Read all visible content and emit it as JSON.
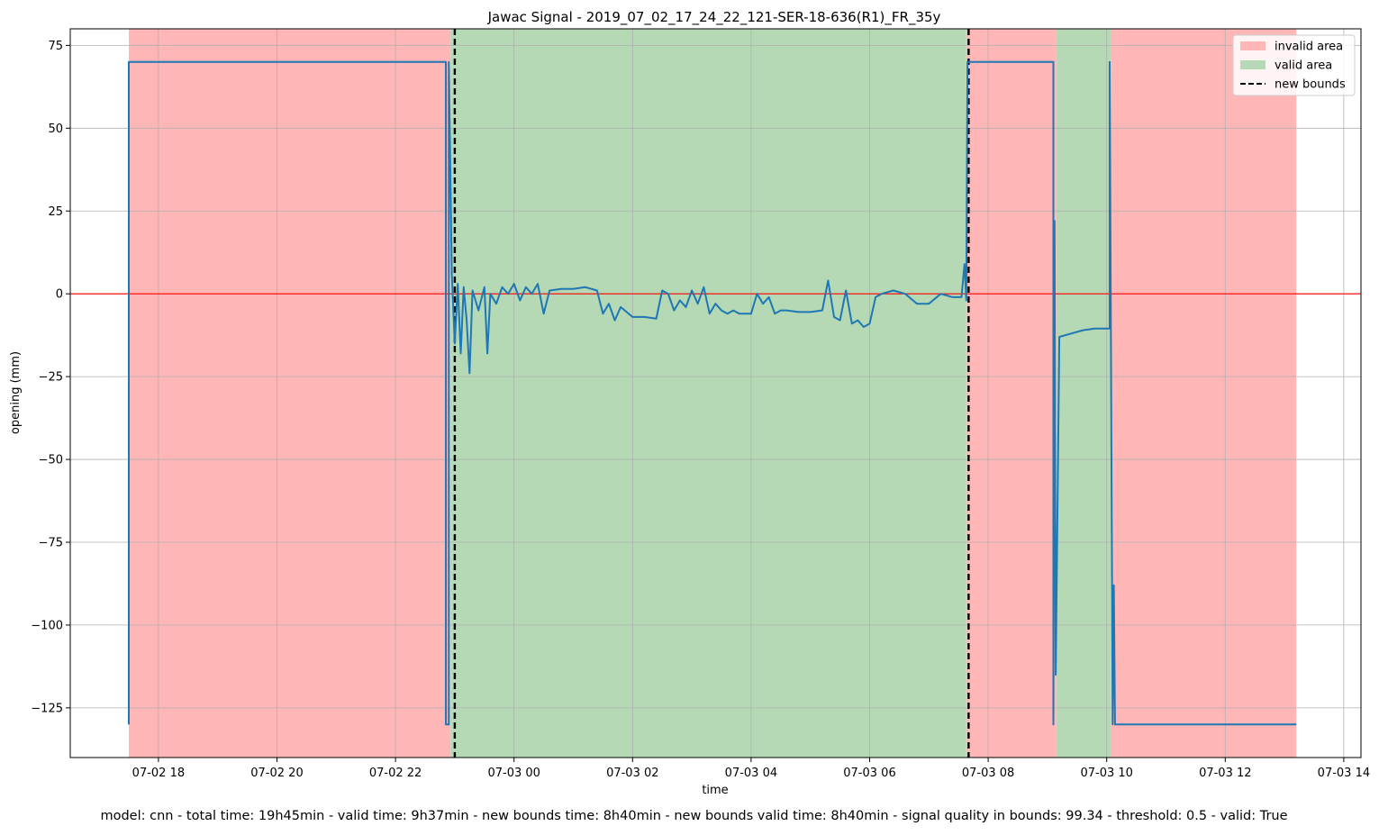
{
  "chart_data": {
    "type": "line",
    "title": "Jawac Signal - 2019_07_02_17_24_22_121-SER-18-636(R1)_FR_35y",
    "xlabel": "time",
    "ylabel": "opening (mm)",
    "ylim": [
      -140,
      80
    ],
    "xlim_hours": [
      16.55,
      38.3
    ],
    "x_ticks": [
      {
        "h": 18,
        "label": "07-02 18"
      },
      {
        "h": 20,
        "label": "07-02 20"
      },
      {
        "h": 22,
        "label": "07-02 22"
      },
      {
        "h": 24,
        "label": "07-03 00"
      },
      {
        "h": 26,
        "label": "07-03 02"
      },
      {
        "h": 28,
        "label": "07-03 04"
      },
      {
        "h": 30,
        "label": "07-03 06"
      },
      {
        "h": 32,
        "label": "07-03 08"
      },
      {
        "h": 34,
        "label": "07-03 10"
      },
      {
        "h": 36,
        "label": "07-03 12"
      },
      {
        "h": 38,
        "label": "07-03 14"
      }
    ],
    "y_ticks": [
      75,
      50,
      25,
      0,
      -25,
      -50,
      -75,
      -100,
      -125
    ],
    "grid": true,
    "legend_position": "top-right",
    "legend": [
      {
        "label": "invalid area",
        "kind": "patch",
        "color": "#ffb6b6"
      },
      {
        "label": "valid area",
        "kind": "patch",
        "color": "#b4d9b4"
      },
      {
        "label": "new bounds",
        "kind": "dashed-line",
        "color": "#000000"
      }
    ],
    "invalid_areas_hours": [
      [
        17.5,
        22.93
      ],
      [
        31.63,
        33.15
      ],
      [
        34.07,
        37.2
      ]
    ],
    "valid_areas_hours": [
      [
        22.93,
        31.63
      ],
      [
        33.15,
        34.07
      ]
    ],
    "new_bounds_hours": [
      23.0,
      31.67
    ],
    "reference_line": {
      "y": 0,
      "color": "#ff0000"
    },
    "series_color": "#1f77b4",
    "series": [
      {
        "points": [
          [
            17.5,
            -130
          ],
          [
            17.5,
            70
          ],
          [
            22.85,
            70
          ],
          [
            22.85,
            -130
          ],
          [
            22.9,
            -130
          ],
          [
            22.9,
            70
          ],
          [
            22.95,
            6
          ],
          [
            23.0,
            -15
          ],
          [
            23.05,
            3
          ],
          [
            23.1,
            -18
          ],
          [
            23.15,
            2
          ],
          [
            23.2,
            -8
          ],
          [
            23.25,
            -24
          ],
          [
            23.3,
            1
          ],
          [
            23.4,
            -5
          ],
          [
            23.5,
            2
          ],
          [
            23.55,
            -18
          ],
          [
            23.6,
            0
          ],
          [
            23.7,
            -3
          ],
          [
            23.8,
            2
          ],
          [
            23.9,
            0
          ],
          [
            24.0,
            3
          ],
          [
            24.1,
            -2
          ],
          [
            24.2,
            2
          ],
          [
            24.3,
            0
          ],
          [
            24.4,
            3
          ],
          [
            24.5,
            -6
          ],
          [
            24.6,
            1
          ],
          [
            24.8,
            1.5
          ],
          [
            25.0,
            1.5
          ],
          [
            25.2,
            2
          ],
          [
            25.4,
            1
          ],
          [
            25.5,
            -6
          ],
          [
            25.6,
            -3
          ],
          [
            25.7,
            -8
          ],
          [
            25.8,
            -4
          ],
          [
            26.0,
            -7
          ],
          [
            26.2,
            -7
          ],
          [
            26.4,
            -7.5
          ],
          [
            26.5,
            1
          ],
          [
            26.6,
            0
          ],
          [
            26.7,
            -5
          ],
          [
            26.8,
            -2
          ],
          [
            26.9,
            -4
          ],
          [
            27.0,
            1
          ],
          [
            27.1,
            -3
          ],
          [
            27.2,
            2
          ],
          [
            27.3,
            -6
          ],
          [
            27.4,
            -3
          ],
          [
            27.5,
            -5
          ],
          [
            27.6,
            -6
          ],
          [
            27.7,
            -5
          ],
          [
            27.8,
            -6
          ],
          [
            28.0,
            -6
          ],
          [
            28.1,
            0
          ],
          [
            28.2,
            -3
          ],
          [
            28.3,
            -1
          ],
          [
            28.4,
            -6
          ],
          [
            28.5,
            -5
          ],
          [
            28.6,
            -5
          ],
          [
            28.8,
            -5.5
          ],
          [
            29.0,
            -5.5
          ],
          [
            29.2,
            -5
          ],
          [
            29.3,
            4
          ],
          [
            29.4,
            -7
          ],
          [
            29.5,
            -8
          ],
          [
            29.6,
            1
          ],
          [
            29.7,
            -9
          ],
          [
            29.8,
            -8
          ],
          [
            29.9,
            -10
          ],
          [
            30.0,
            -9
          ],
          [
            30.1,
            -1
          ],
          [
            30.2,
            0
          ],
          [
            30.4,
            1
          ],
          [
            30.6,
            0
          ],
          [
            30.8,
            -3
          ],
          [
            31.0,
            -3
          ],
          [
            31.2,
            0
          ],
          [
            31.4,
            -1
          ],
          [
            31.55,
            -1
          ],
          [
            31.6,
            9
          ],
          [
            31.63,
            -2
          ],
          [
            31.65,
            70
          ],
          [
            33.1,
            70
          ],
          [
            33.1,
            -130
          ],
          [
            33.12,
            22
          ],
          [
            33.14,
            -115
          ],
          [
            33.2,
            -13
          ],
          [
            33.4,
            -12
          ],
          [
            33.6,
            -11
          ],
          [
            33.8,
            -10.5
          ],
          [
            34.05,
            -10.5
          ],
          [
            34.05,
            70
          ],
          [
            34.1,
            -130
          ],
          [
            34.12,
            -88
          ],
          [
            34.14,
            -130
          ],
          [
            35.5,
            -130
          ],
          [
            37.2,
            -130
          ]
        ]
      }
    ]
  },
  "footer": "model: cnn - total time: 19h45min - valid time: 9h37min - new bounds time: 8h40min - new bounds valid time: 8h40min - signal quality in bounds: 99.34 - threshold: 0.5 - valid: True"
}
